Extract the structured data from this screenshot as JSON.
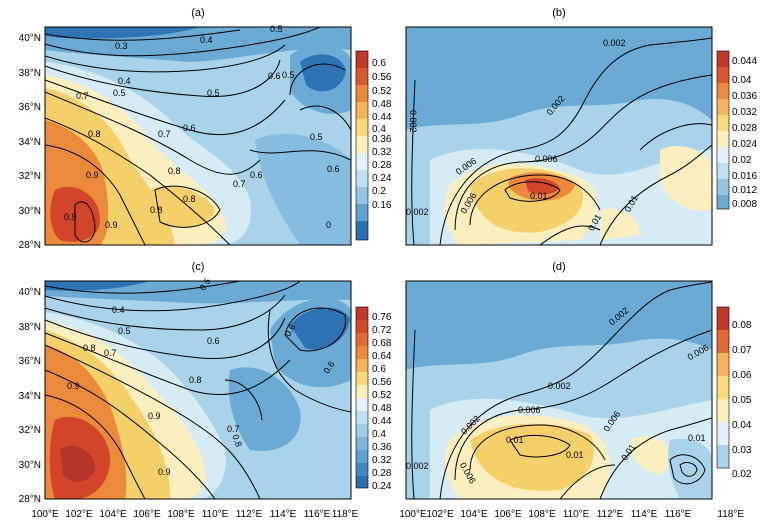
{
  "figure": {
    "panels": [
      {
        "id": "a",
        "title": "(a)",
        "lat_labels": [
          "40°N",
          "38°N",
          "36°N",
          "34°N",
          "32°N",
          "30°N",
          "28°N"
        ],
        "lon_labels": [],
        "contour_labels": [
          "0.5",
          "0.3",
          "0.4",
          "0.4",
          "0.5",
          "0.6",
          "0.7",
          "0.8",
          "0.9",
          "0.7",
          "0.6",
          "0.5",
          "0.5",
          "0.5",
          "0.6",
          "0.8",
          "0.7",
          "0.6",
          "0.8",
          "0.9",
          "0.8",
          "0.9",
          "0"
        ],
        "colorbar": {
          "labels": [
            "0.6",
            "0.56",
            "0.52",
            "0.48",
            "0.44",
            "0.4",
            "0.36",
            "0.32",
            "0.28",
            "0.24",
            "0.2",
            "0.16"
          ]
        }
      },
      {
        "id": "b",
        "title": "(b)",
        "lat_labels": [],
        "lon_labels": [],
        "contour_labels": [
          "0.002",
          "0.002",
          "0.002",
          "0.006",
          "0.006",
          "0.01",
          "0.006",
          "0.01",
          "0.01",
          "0.002"
        ],
        "colorbar": {
          "labels": [
            "0.044",
            "0.04",
            "0.036",
            "0.032",
            "0.028",
            "0.024",
            "0.02",
            "0.016",
            "0.012",
            "0.008"
          ]
        }
      },
      {
        "id": "c",
        "title": "(c)",
        "lat_labels": [
          "40°N",
          "38°N",
          "36°N",
          "34°N",
          "32°N",
          "30°N",
          "28°N"
        ],
        "lon_labels": [
          "100°E",
          "102°E",
          "104°E",
          "106°E",
          "108°E",
          "110°E",
          "112°E",
          "114°E",
          "116°E",
          "118°E"
        ],
        "contour_labels": [
          "0.5",
          "0.4",
          "0.5",
          "0.6",
          "0.7",
          "0.8",
          "0.9",
          "0.9",
          "0.8",
          "0.7",
          "0.6",
          "0.6",
          "0.8",
          "0.9"
        ],
        "colorbar": {
          "labels": [
            "0.76",
            "0.72",
            "0.68",
            "0.64",
            "0.6",
            "0.56",
            "0.52",
            "0.48",
            "0.44",
            "0.4",
            "0.36",
            "0.32",
            "0.28",
            "0.24"
          ]
        }
      },
      {
        "id": "d",
        "title": "(d)",
        "lat_labels": [],
        "lon_labels": [
          "100°E",
          "102°E",
          "104°E",
          "106°E",
          "108°E",
          "110°E",
          "112°E",
          "114°E",
          "116°E",
          "118°E"
        ],
        "contour_labels": [
          "0.002",
          "0.002",
          "0.006",
          "0.002",
          "0.006",
          "0.01",
          "0.01",
          "0.006",
          "0.01",
          "0.01",
          "0.006",
          "0.002"
        ],
        "colorbar": {
          "labels": [
            "0.08",
            "0.07",
            "0.06",
            "0.05",
            "0.04",
            "0.03",
            "0.02"
          ]
        }
      }
    ]
  },
  "colors": {
    "warm_dark": "#d2452b",
    "orange": "#ec8a3c",
    "yellow": "#f5cf6a",
    "cream": "#fbefc0",
    "pale_blue": "#d6ecf5",
    "light_blue": "#a9d3ea",
    "mid_blue": "#6aaad5",
    "dark_blue": "#2e74b5"
  }
}
